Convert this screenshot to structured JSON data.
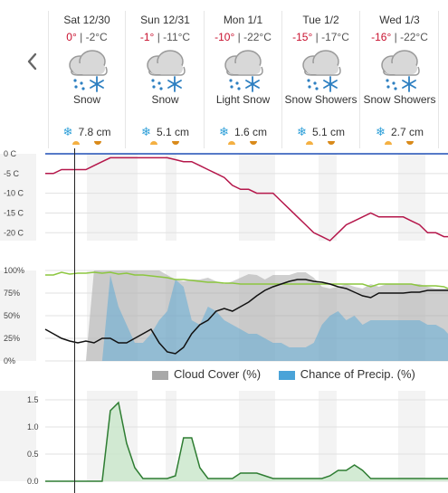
{
  "days": [
    {
      "name": "Sat 12/30",
      "hi": "0°",
      "lo": "-2°C",
      "cond": "Snow",
      "snow": "7.8 cm"
    },
    {
      "name": "Sun 12/31",
      "hi": "-1°",
      "lo": "-11°C",
      "cond": "Snow",
      "snow": "5.1 cm"
    },
    {
      "name": "Mon 1/1",
      "hi": "-10°",
      "lo": "-22°C",
      "cond": "Light Snow",
      "snow": "1.6 cm"
    },
    {
      "name": "Tue 1/2",
      "hi": "-15°",
      "lo": "-17°C",
      "cond": "Snow Showers",
      "snow": "5.1 cm"
    },
    {
      "name": "Wed 1/3",
      "hi": "-16°",
      "lo": "-22°C",
      "cond": "Snow Showers",
      "snow": "2.7 cm"
    }
  ],
  "temp_sep": "|",
  "temp_axis": [
    "0 C",
    "-5 C",
    "-10 C",
    "-15 C",
    "-20 C"
  ],
  "pct_axis": [
    "100%",
    "75%",
    "50%",
    "25%",
    "0%"
  ],
  "precip_axis": [
    "1.5",
    "1.0",
    "0.5",
    "0.0"
  ],
  "legend": {
    "cloud": "Cloud Cover (%)",
    "precip": "Chance of Precip. (%)"
  },
  "colors": {
    "hi": "#c8102e",
    "temp_line": "#b5174b",
    "cloud": "#a8a8a8",
    "precip": "#4aa3d8",
    "humidity": "#8cc63f",
    "dew": "#111111",
    "accum": "#2e7d32"
  },
  "icons": {
    "prev": "chevron-left-icon",
    "weather": "cloud-snow-icon",
    "flake": "snowflake-icon"
  },
  "chart_data": [
    {
      "type": "line",
      "ylim": [
        -22,
        0
      ],
      "x": [
        0,
        10,
        20,
        30,
        40,
        50,
        60,
        70,
        80,
        90,
        100,
        110,
        120,
        130,
        140,
        150,
        160,
        170,
        180,
        190,
        200,
        210,
        220,
        230,
        240,
        250,
        260,
        270,
        280,
        290,
        300,
        310,
        320,
        330,
        340,
        350,
        360,
        370,
        380,
        390,
        400,
        410,
        420,
        430,
        440,
        450,
        460,
        470,
        480,
        490,
        495
      ],
      "series": [
        {
          "values": [
            -5,
            -5,
            -4,
            -4,
            -4,
            -4,
            -3,
            -2,
            -1,
            -1,
            -1,
            -1,
            -1,
            -1,
            -1,
            -1,
            -1.5,
            -2,
            -2,
            -3,
            -4,
            -5,
            -6,
            -8,
            -9,
            -9,
            -10,
            -10,
            -10,
            -12,
            -14,
            -16,
            -18,
            -20,
            -21,
            -22,
            -20,
            -18,
            -17,
            -16,
            -15,
            -16,
            -16,
            -16,
            -16,
            -17,
            -18,
            -20,
            -20,
            -21,
            -21
          ]
        }
      ]
    },
    {
      "type": "area",
      "ylim": [
        0,
        100
      ],
      "x": [
        0,
        10,
        20,
        30,
        40,
        50,
        60,
        70,
        80,
        90,
        100,
        110,
        120,
        130,
        140,
        150,
        160,
        170,
        180,
        190,
        200,
        210,
        220,
        230,
        240,
        250,
        260,
        270,
        280,
        290,
        300,
        310,
        320,
        330,
        340,
        350,
        360,
        370,
        380,
        390,
        400,
        410,
        420,
        430,
        440,
        450,
        460,
        470,
        480,
        490,
        495
      ],
      "series": [
        {
          "name": "Cloud Cover (%)",
          "values": [
            0,
            0,
            0,
            0,
            0,
            0,
            100,
            100,
            100,
            100,
            100,
            100,
            100,
            100,
            100,
            95,
            90,
            88,
            90,
            90,
            92,
            88,
            85,
            88,
            92,
            96,
            95,
            90,
            95,
            95,
            95,
            98,
            98,
            92,
            82,
            80,
            82,
            85,
            82,
            80,
            85,
            82,
            85,
            85,
            85,
            85,
            85,
            82,
            80,
            80,
            80
          ]
        },
        {
          "name": "Chance of Precip. (%)",
          "values": [
            0,
            0,
            0,
            0,
            0,
            0,
            0,
            0,
            95,
            60,
            40,
            20,
            20,
            30,
            45,
            55,
            90,
            82,
            45,
            40,
            60,
            55,
            45,
            40,
            35,
            30,
            30,
            25,
            20,
            20,
            15,
            15,
            15,
            20,
            40,
            50,
            55,
            45,
            50,
            40,
            45,
            45,
            45,
            45,
            45,
            45,
            45,
            40,
            40,
            35,
            30
          ]
        },
        {
          "values": [
            95,
            95,
            98,
            96,
            97,
            97,
            98,
            97,
            98,
            96,
            97,
            95,
            95,
            94,
            93,
            92,
            90,
            90,
            89,
            88,
            87,
            87,
            86,
            86,
            85,
            85,
            85,
            85,
            85,
            85,
            85,
            85,
            85,
            85,
            85,
            85,
            85,
            85,
            85,
            85,
            82,
            85,
            85,
            85,
            85,
            85,
            83,
            83,
            83,
            82,
            80
          ]
        },
        {
          "values": [
            35,
            30,
            25,
            22,
            20,
            22,
            20,
            25,
            25,
            20,
            20,
            25,
            30,
            35,
            20,
            10,
            8,
            15,
            30,
            40,
            45,
            55,
            58,
            55,
            60,
            65,
            72,
            78,
            82,
            85,
            88,
            90,
            90,
            88,
            87,
            85,
            82,
            80,
            76,
            72,
            70,
            75,
            75,
            75,
            75,
            76,
            76,
            78,
            78,
            78,
            78
          ]
        }
      ]
    },
    {
      "type": "area",
      "ylim": [
        0,
        1.5
      ],
      "x": [
        0,
        10,
        20,
        30,
        40,
        50,
        60,
        70,
        80,
        90,
        100,
        110,
        120,
        130,
        140,
        150,
        160,
        170,
        180,
        190,
        200,
        210,
        220,
        230,
        240,
        250,
        260,
        270,
        280,
        290,
        300,
        310,
        320,
        330,
        340,
        350,
        360,
        370,
        380,
        390,
        400,
        410,
        420,
        430,
        440,
        450,
        460,
        470,
        480,
        490,
        495
      ],
      "series": [
        {
          "values": [
            0,
            0,
            0,
            0,
            0,
            0,
            0,
            0,
            1.3,
            1.45,
            0.7,
            0.25,
            0.05,
            0.05,
            0.05,
            0.05,
            0.1,
            0.8,
            0.8,
            0.25,
            0.05,
            0.05,
            0.05,
            0.05,
            0.15,
            0.15,
            0.15,
            0.1,
            0.05,
            0.05,
            0.05,
            0.05,
            0.05,
            0.05,
            0.05,
            0.1,
            0.2,
            0.2,
            0.3,
            0.2,
            0.05,
            0.05,
            0.05,
            0.05,
            0.05,
            0.05,
            0.05,
            0.05,
            0.05,
            0.05,
            0.05
          ]
        }
      ]
    }
  ]
}
